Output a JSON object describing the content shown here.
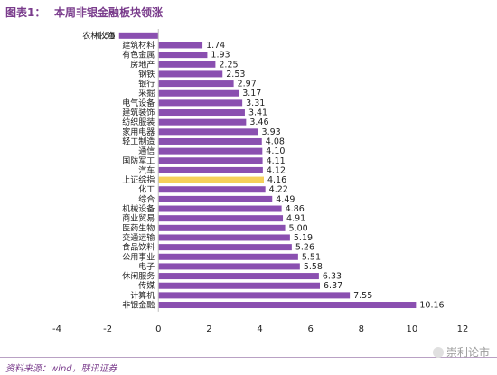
{
  "header": {
    "label": "图表1：",
    "title": "本周非银金融板块领涨"
  },
  "chart_data": {
    "type": "bar",
    "orientation": "horizontal",
    "title": "本周非银金融板块领涨",
    "categories": [
      "农林牧渔",
      "建筑材料",
      "有色金属",
      "房地产",
      "钢铁",
      "银行",
      "采掘",
      "电气设备",
      "建筑装饰",
      "纺织服装",
      "家用电器",
      "轻工制造",
      "通信",
      "国防军工",
      "汽车",
      "上证综指",
      "化工",
      "综合",
      "机械设备",
      "商业贸易",
      "医药生物",
      "交通运输",
      "食品饮料",
      "公用事业",
      "电子",
      "休闲服务",
      "传媒",
      "计算机",
      "非银金融"
    ],
    "values": [
      -1.55,
      1.74,
      1.93,
      2.25,
      2.53,
      2.97,
      3.17,
      3.31,
      3.41,
      3.46,
      3.93,
      4.08,
      4.1,
      4.11,
      4.12,
      4.16,
      4.22,
      4.49,
      4.86,
      4.91,
      5.0,
      5.19,
      5.26,
      5.51,
      5.58,
      6.33,
      6.37,
      7.55,
      10.16
    ],
    "value_labels": [
      "-1.55",
      "1.74",
      "1.93",
      "2.25",
      "2.53",
      "2.97",
      "3.17",
      "3.31",
      "3.41",
      "3.46",
      "3.93",
      "4.08",
      "4.10",
      "4.11",
      "4.12",
      "4.16",
      "4.22",
      "4.49",
      "4.86",
      "4.91",
      "5.00",
      "5.19",
      "5.26",
      "5.51",
      "5.58",
      "6.33",
      "6.37",
      "7.55",
      "10.16"
    ],
    "highlight_category": "上证综指",
    "xlim": [
      -4,
      12
    ],
    "xticks": [
      -4,
      -2,
      0,
      2,
      4,
      6,
      8,
      10,
      12
    ],
    "xtick_labels": [
      "-4",
      "-2",
      "0",
      "2",
      "4",
      "6",
      "8",
      "10",
      "12"
    ],
    "grid": false,
    "xlabel": "",
    "ylabel": ""
  },
  "colors": {
    "bar": "#8a4fb0",
    "highlight": "#f6d05a",
    "accent": "#7a3c8c"
  },
  "source": "资料来源：wind，联讯证券",
  "watermark": "崇利论市",
  "watermark_icon": "chat-bubble-icon"
}
